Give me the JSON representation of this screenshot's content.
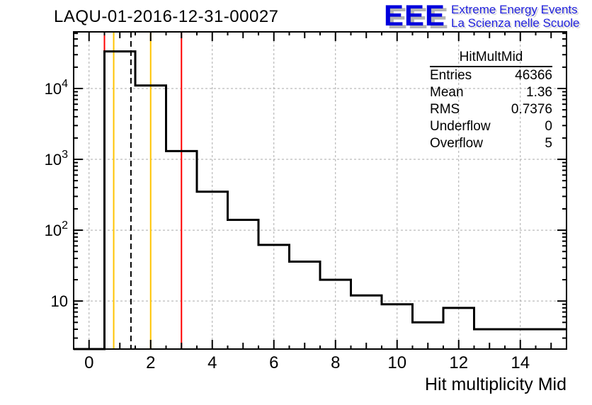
{
  "header": {
    "title": "LAQU-01-2016-12-31-00027"
  },
  "logo": {
    "acronym": "EEE",
    "line1": "Extreme Energy Events",
    "line2": "La Scienza nelle Scuole",
    "accent_color": "#0000dd"
  },
  "stats": {
    "title": "HitMultMid",
    "rows": [
      {
        "label": "Entries",
        "value": "46366"
      },
      {
        "label": "Mean",
        "value": "1.36"
      },
      {
        "label": "RMS",
        "value": "0.7376"
      },
      {
        "label": "Underflow",
        "value": "0"
      },
      {
        "label": "Overflow",
        "value": "5"
      }
    ]
  },
  "chart_data": {
    "type": "bar",
    "title": "LAQU-01-2016-12-31-00027",
    "histogram_name": "HitMultMid",
    "xlabel": "Hit multiplicity Mid",
    "ylabel": "",
    "bin_width": 1,
    "bin_centers": [
      0,
      1,
      2,
      3,
      4,
      5,
      6,
      7,
      8,
      9,
      10,
      11,
      12,
      13,
      14,
      15
    ],
    "values": [
      0,
      33400,
      11000,
      1307,
      350,
      140,
      62,
      36,
      20,
      12,
      9,
      5,
      8,
      4,
      4,
      4
    ],
    "underflow": 0,
    "overflow": 5,
    "entries": 46366,
    "mean": 1.36,
    "rms": 0.7376,
    "xlim": [
      -0.5,
      15.5
    ],
    "ylim": [
      2.1,
      63000
    ],
    "ylog": true,
    "grid": true,
    "grid_color": "#aaaaaa",
    "line_color": "#000000",
    "x_ticks_labeled": [
      {
        "value": 0,
        "label": "0"
      },
      {
        "value": 2,
        "label": "2"
      },
      {
        "value": 4,
        "label": "4"
      },
      {
        "value": 6,
        "label": "6"
      },
      {
        "value": 8,
        "label": "8"
      },
      {
        "value": 10,
        "label": "10"
      },
      {
        "value": 12,
        "label": "12"
      },
      {
        "value": 14,
        "label": "14"
      }
    ],
    "y_ticks_labeled": [
      {
        "value": 10,
        "label": "10"
      },
      {
        "value": 100,
        "label": "10^2"
      },
      {
        "value": 1000,
        "label": "10^3"
      },
      {
        "value": 10000,
        "label": "10^4"
      }
    ],
    "marker_lines": [
      {
        "x": 0.5,
        "color": "#ff0000",
        "style": "solid"
      },
      {
        "x": 0.8,
        "color": "#ffc400",
        "style": "solid"
      },
      {
        "x": 1.36,
        "color": "#000000",
        "style": "dashed"
      },
      {
        "x": 2.0,
        "color": "#ffc400",
        "style": "solid"
      },
      {
        "x": 3.0,
        "color": "#ff0000",
        "style": "solid"
      }
    ]
  }
}
